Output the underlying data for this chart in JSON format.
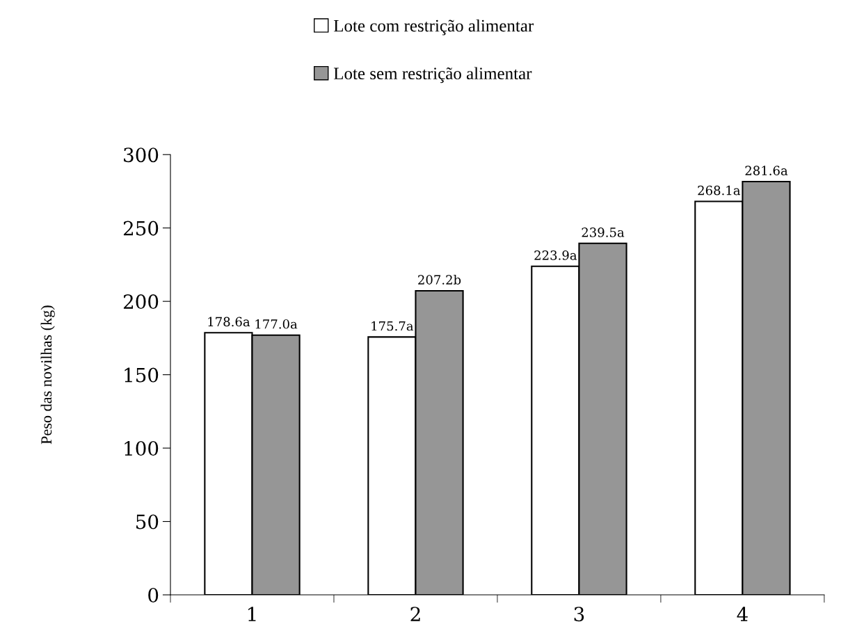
{
  "chart_data": {
    "type": "bar",
    "ylabel": "Peso das novilhas (kg)",
    "categories": [
      "1",
      "2",
      "3",
      "4"
    ],
    "series": [
      {
        "name": "Lote com restrição alimentar",
        "color": "#ffffff",
        "values": [
          178.6,
          175.7,
          223.9,
          268.1
        ],
        "value_labels": [
          "178.6a",
          "175.7a",
          "223.9a",
          "268.1a"
        ]
      },
      {
        "name": "Lote sem restrição alimentar",
        "color": "#969696",
        "values": [
          177.0,
          207.2,
          239.5,
          281.6
        ],
        "value_labels": [
          "177.0a",
          "207.2b",
          "239.5a",
          "281.6a"
        ]
      }
    ],
    "ylim": [
      0,
      300
    ],
    "yticks": [
      0,
      50,
      100,
      150,
      200,
      250,
      300
    ],
    "grid": false,
    "legend": "top"
  }
}
